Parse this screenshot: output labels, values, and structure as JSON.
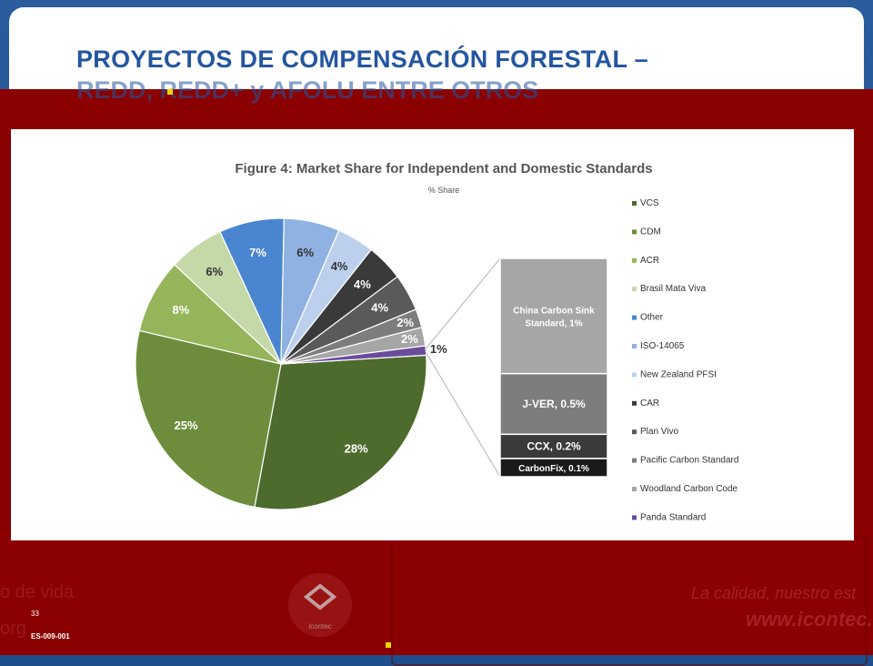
{
  "slide": {
    "title": "PROYECTOS DE COMPENSACIÓN FORESTAL – REDD, REDD+ y AFOLU ENTRE OTROS",
    "title_line1": "PROYECTOS DE COMPENSACIÓN FORESTAL –",
    "title_line2": "REDD, REDD+ y AFOLU ENTRE OTROS",
    "slide_number": "33",
    "doc_code": "ES-009-001",
    "footer_left_1": "o de vida",
    "footer_left_2": "org",
    "footer_right_tagline": "La calidad, nuestro est",
    "footer_url": "www.icontec.c",
    "logo_text": "icontec"
  },
  "colors": {
    "title": "#2456a0",
    "band": "#8b0000",
    "frame": "#1f4e8c"
  },
  "chart_data": {
    "type": "pie",
    "title": "Figure 4: Market Share for Independent and Domestic Standards",
    "subtitle": "% Share",
    "slices": [
      {
        "name": "VCS",
        "value": 28,
        "label": "28%",
        "color": "#4e6b2e"
      },
      {
        "name": "CDM",
        "value": 25,
        "label": "25%",
        "color": "#6e8d3c"
      },
      {
        "name": "ACR",
        "value": 8,
        "label": "8%",
        "color": "#95b55a"
      },
      {
        "name": "Brasil Mata Viva",
        "value": 6,
        "label": "6%",
        "color": "#c5d8a8"
      },
      {
        "name": "Other",
        "value": 7,
        "label": "7%",
        "color": "#4a86d0"
      },
      {
        "name": "ISO-14065",
        "value": 6,
        "label": "6%",
        "color": "#8fb2e2"
      },
      {
        "name": "New Zealand PFSI",
        "value": 4,
        "label": "4%",
        "color": "#bcd0ee"
      },
      {
        "name": "CAR",
        "value": 4,
        "label": "4%",
        "color": "#3a3a3a"
      },
      {
        "name": "Plan Vivo",
        "value": 4,
        "label": "4%",
        "color": "#5a5a5a"
      },
      {
        "name": "Pacific Carbon Standard",
        "value": 2,
        "label": "2%",
        "color": "#7d7d7d"
      },
      {
        "name": "Woodland Carbon Code",
        "value": 2,
        "label": "2%",
        "color": "#a6a6a6"
      },
      {
        "name": "Panda Standard",
        "value": 1,
        "label": "1%",
        "color": "#6a4c9c"
      }
    ],
    "breakout": [
      {
        "name": "China Carbon Sink Standard",
        "value": 1,
        "label": "China Carbon Sink Standard, 1%",
        "label_line1": "China Carbon Sink",
        "label_line2": "Standard, 1%",
        "color": "#a6a6a6"
      },
      {
        "name": "J-VER",
        "value": 0.5,
        "label": "J-VER, 0.5%",
        "color": "#7d7d7d"
      },
      {
        "name": "CCX",
        "value": 0.2,
        "label": "CCX, 0.2%",
        "color": "#3a3a3a"
      },
      {
        "name": "CarbonFix",
        "value": 0.1,
        "label": "CarbonFix, 0.1%",
        "color": "#1a1a1a"
      }
    ],
    "legend": [
      {
        "name": "VCS",
        "color": "#4e6b2e"
      },
      {
        "name": "CDM",
        "color": "#6e8d3c"
      },
      {
        "name": "ACR",
        "color": "#95b55a"
      },
      {
        "name": "Brasil Mata Viva",
        "color": "#c5d8a8"
      },
      {
        "name": "Other",
        "color": "#4a86d0"
      },
      {
        "name": "ISO-14065",
        "color": "#8fb2e2"
      },
      {
        "name": "New Zealand PFSI",
        "color": "#bcd0ee"
      },
      {
        "name": "CAR",
        "color": "#3a3a3a"
      },
      {
        "name": "Plan Vivo",
        "color": "#5a5a5a"
      },
      {
        "name": "Pacific Carbon Standard",
        "color": "#7d7d7d"
      },
      {
        "name": "Woodland Carbon Code",
        "color": "#a6a6a6"
      },
      {
        "name": "Panda Standard",
        "color": "#6a4c9c"
      }
    ],
    "legend_position": "right"
  }
}
